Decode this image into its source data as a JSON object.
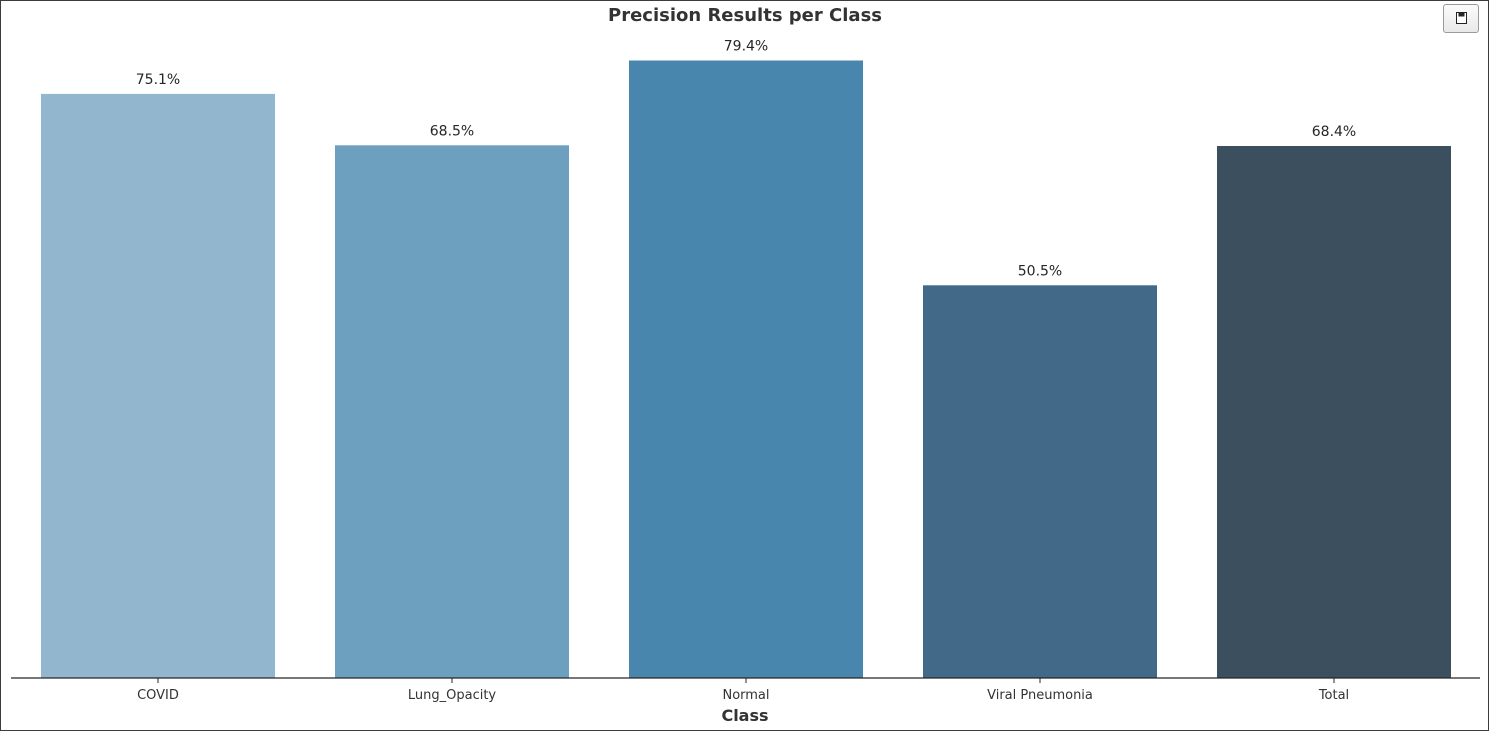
{
  "chart_data": {
    "type": "bar",
    "title": "Precision Results per Class",
    "xlabel": "Class",
    "ylabel": "",
    "categories": [
      "COVID",
      "Lung_Opacity",
      "Normal",
      "Viral Pneumonia",
      "Total"
    ],
    "values": [
      75.1,
      68.5,
      79.4,
      50.5,
      68.4
    ],
    "value_labels": [
      "75.1%",
      "68.5%",
      "79.4%",
      "50.5%",
      "68.4%"
    ],
    "colors": [
      "#92b6cd",
      "#6d9fbf",
      "#4886ad",
      "#426987",
      "#3b4f5e"
    ],
    "ylim": [
      0,
      80
    ],
    "grid": false,
    "legend": "none"
  },
  "toolbar": {
    "save_icon": "floppy-disk-icon"
  }
}
